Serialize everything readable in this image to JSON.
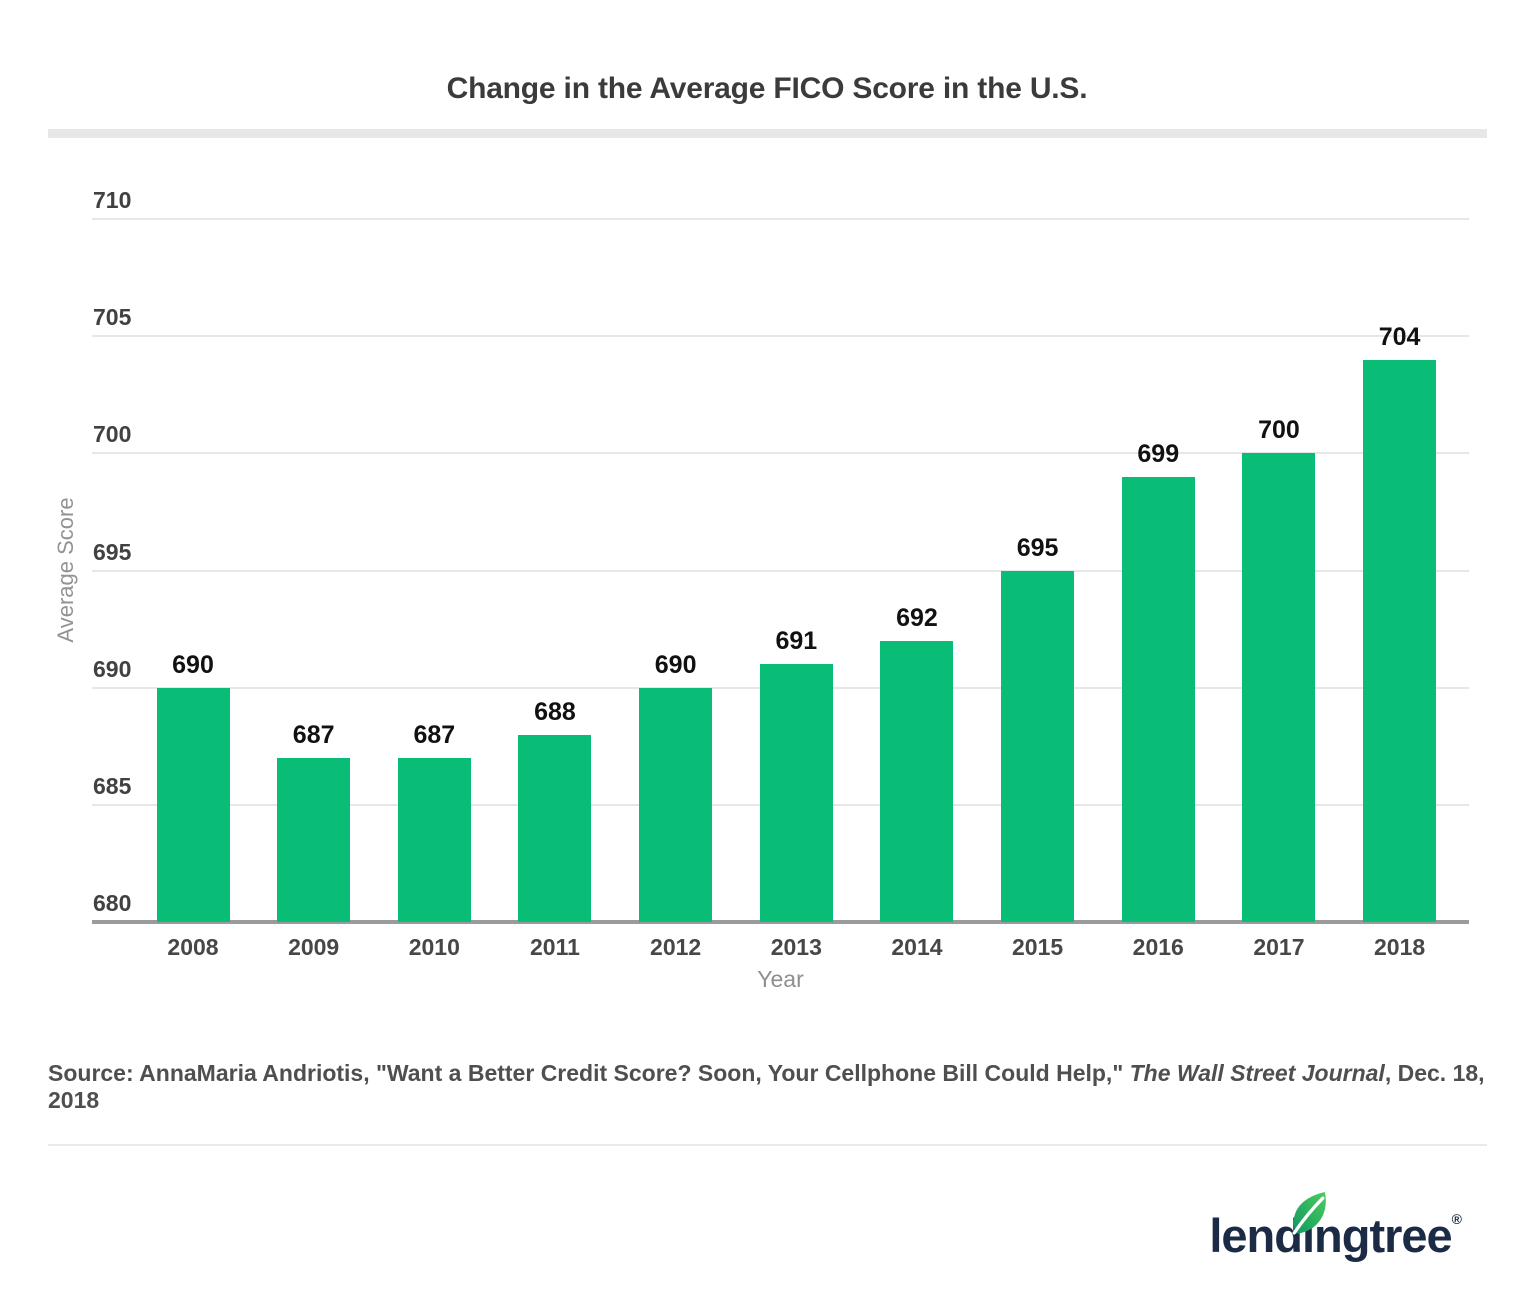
{
  "title": "Change in the Average FICO Score in the U.S.",
  "chart_data": {
    "type": "bar",
    "title": "Change in the Average FICO Score in the U.S.",
    "categories": [
      "2008",
      "2009",
      "2010",
      "2011",
      "2012",
      "2013",
      "2014",
      "2015",
      "2016",
      "2017",
      "2018"
    ],
    "values": [
      690,
      687,
      687,
      688,
      690,
      691,
      692,
      695,
      699,
      700,
      704
    ],
    "xlabel": "Year",
    "ylabel": "Average Score",
    "ylim": [
      680,
      710
    ],
    "ytick_step": 5,
    "yticks": [
      680,
      685,
      690,
      695,
      700,
      705,
      710
    ],
    "grid": true,
    "legend": false,
    "data_labels": true
  },
  "source": {
    "prefix": "Source: AnnaMaria Andriotis, \"Want a Better Credit Score? Soon, Your Cellphone Bill Could Help,\" ",
    "italic": "The Wall Street Journal",
    "suffix": ", Dec. 18, 2018"
  },
  "logo": {
    "part1": "lend",
    "dotless_i": "ı",
    "part2": "ngtree",
    "registered": "®"
  },
  "colors": {
    "bar": "#0abd76",
    "grid": "#e7e7e7",
    "axis": "#9b9b9b",
    "title_rule": "#e7e7e7",
    "logo_navy": "#1c2b45",
    "leaf_dark": "#129860",
    "leaf_light": "#4ace5e",
    "value_label": "#111111"
  }
}
